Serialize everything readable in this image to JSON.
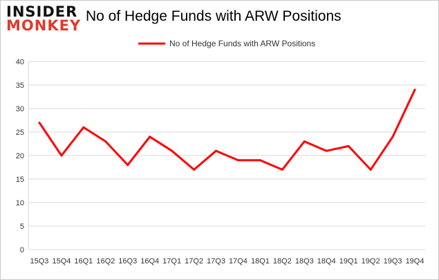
{
  "logo": {
    "line1": "INSIDER",
    "line2": "MONKEY"
  },
  "chart_data": {
    "type": "line",
    "title": "No of Hedge Funds with ARW Positions",
    "categories": [
      "15Q3",
      "15Q4",
      "16Q1",
      "16Q2",
      "16Q3",
      "16Q4",
      "17Q1",
      "17Q2",
      "17Q3",
      "17Q4",
      "18Q1",
      "18Q2",
      "18Q3",
      "18Q4",
      "19Q1",
      "19Q2",
      "19Q3",
      "19Q4"
    ],
    "series": [
      {
        "name": "No of Hedge Funds with ARW Positions",
        "color": "#ff0000",
        "values": [
          27,
          20,
          26,
          23,
          18,
          24,
          21,
          17,
          21,
          19,
          19,
          17,
          23,
          21,
          22,
          17,
          24,
          34
        ]
      }
    ],
    "ylim": [
      0,
      40
    ],
    "yticks": [
      0,
      5,
      10,
      15,
      20,
      25,
      30,
      35,
      40
    ],
    "grid": true,
    "legend": "top-center",
    "xlabel": "",
    "ylabel": ""
  }
}
